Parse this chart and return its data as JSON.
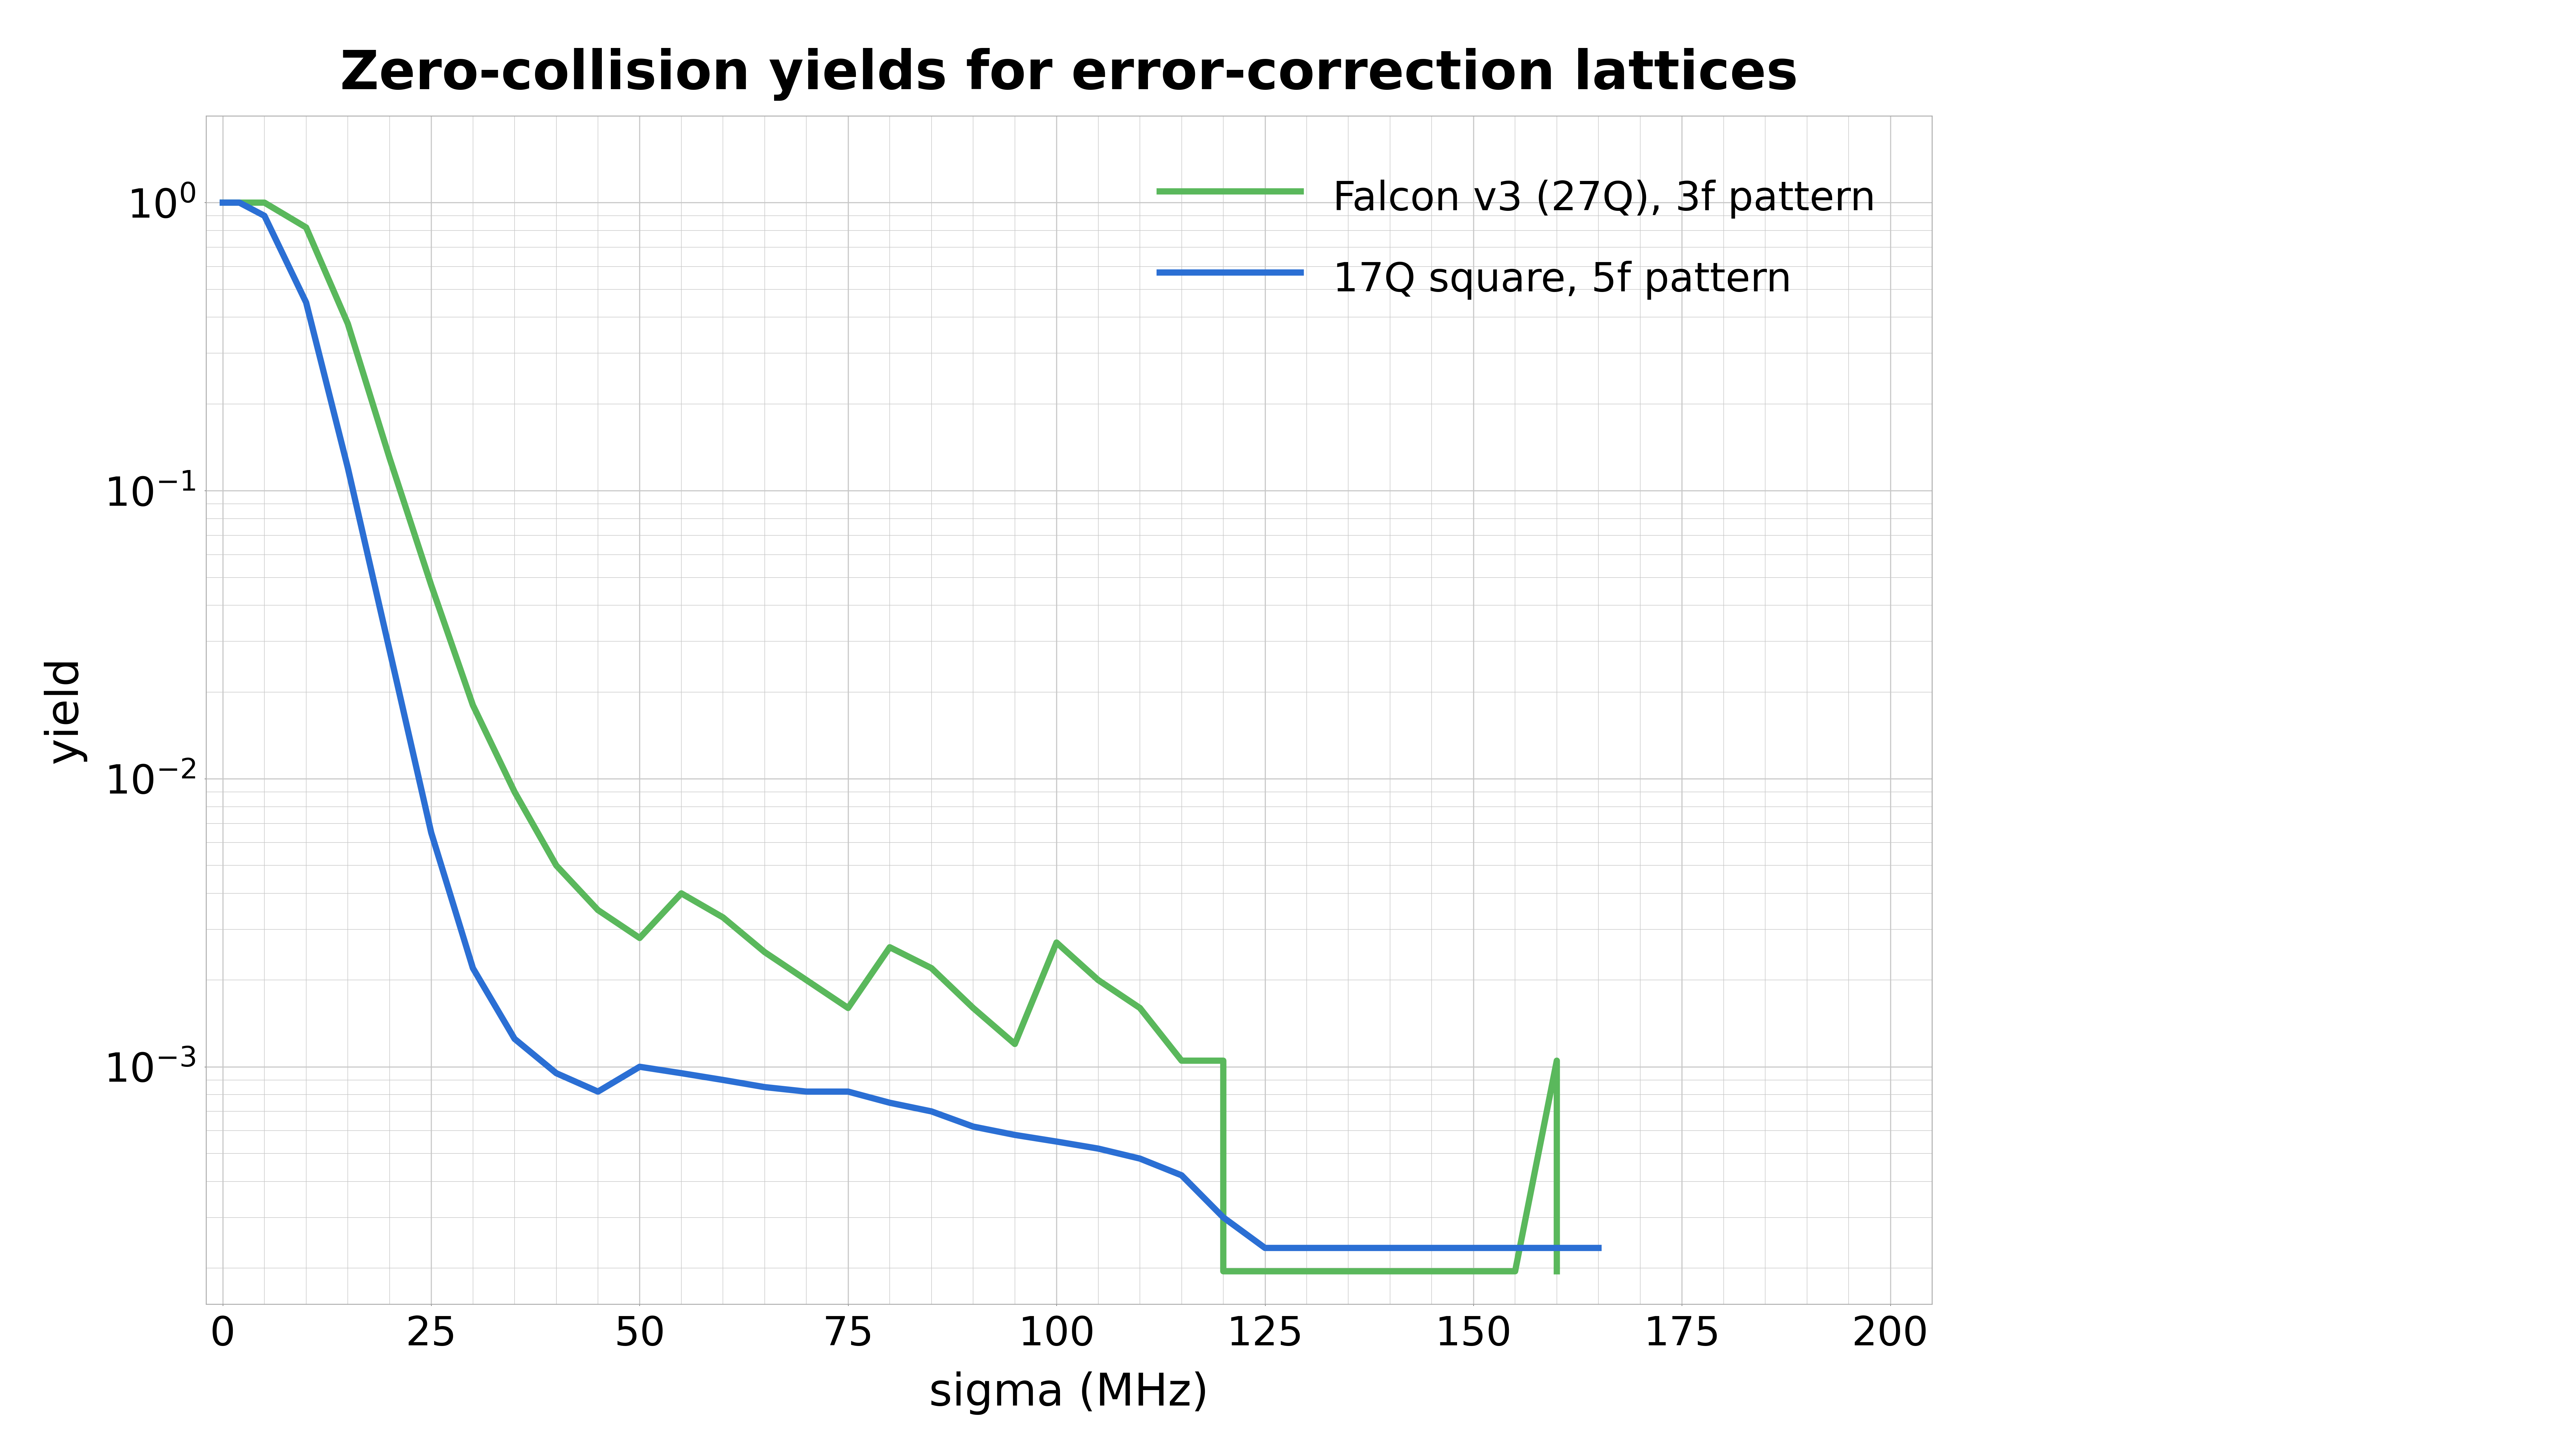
{
  "title": "Zero-collision yields for error-correction lattices",
  "xlabel": "sigma (MHz)",
  "ylabel": "yield",
  "xlim": [
    -2,
    205
  ],
  "ylim": [
    0.00015,
    2.0
  ],
  "xticks": [
    0,
    25,
    50,
    75,
    100,
    125,
    150,
    175,
    200
  ],
  "background_color": "#ffffff",
  "grid_color": "#c8c8c8",
  "title_fontsize": 120,
  "label_fontsize": 100,
  "tick_fontsize": 90,
  "legend_fontsize": 90,
  "green_color": "#5ab85c",
  "blue_color": "#2b6fd4",
  "line_width": 14,
  "green_x": [
    0,
    5,
    10,
    15,
    20,
    25,
    30,
    35,
    40,
    45,
    50,
    55,
    60,
    65,
    70,
    75,
    80,
    85,
    90,
    95,
    100,
    105,
    110,
    115,
    120,
    120,
    155,
    160,
    160
  ],
  "green_y": [
    1.0,
    1.0,
    0.82,
    0.38,
    0.13,
    0.047,
    0.018,
    0.009,
    0.005,
    0.0035,
    0.0028,
    0.004,
    0.0033,
    0.0025,
    0.002,
    0.0016,
    0.0026,
    0.0022,
    0.0016,
    0.0012,
    0.0027,
    0.002,
    0.0016,
    0.00105,
    0.00105,
    0.000195,
    0.000195,
    0.00105,
    0.000195
  ],
  "blue_x": [
    0,
    2,
    5,
    10,
    15,
    20,
    25,
    30,
    35,
    40,
    45,
    50,
    55,
    60,
    65,
    70,
    75,
    80,
    85,
    90,
    95,
    100,
    105,
    110,
    115,
    120,
    125,
    130,
    155,
    160,
    165
  ],
  "blue_y": [
    1.0,
    1.0,
    0.9,
    0.45,
    0.12,
    0.028,
    0.0065,
    0.0022,
    0.00125,
    0.00095,
    0.00082,
    0.001,
    0.00095,
    0.0009,
    0.00085,
    0.00082,
    0.00082,
    0.00075,
    0.0007,
    0.00062,
    0.00058,
    0.00055,
    0.00052,
    0.00048,
    0.00042,
    0.0003,
    0.000235,
    0.000235,
    0.000235,
    0.000235,
    0.000235
  ],
  "legend_label_green": "Falcon v3 (27Q), 3f pattern",
  "legend_label_blue": "17Q square, 5f pattern"
}
